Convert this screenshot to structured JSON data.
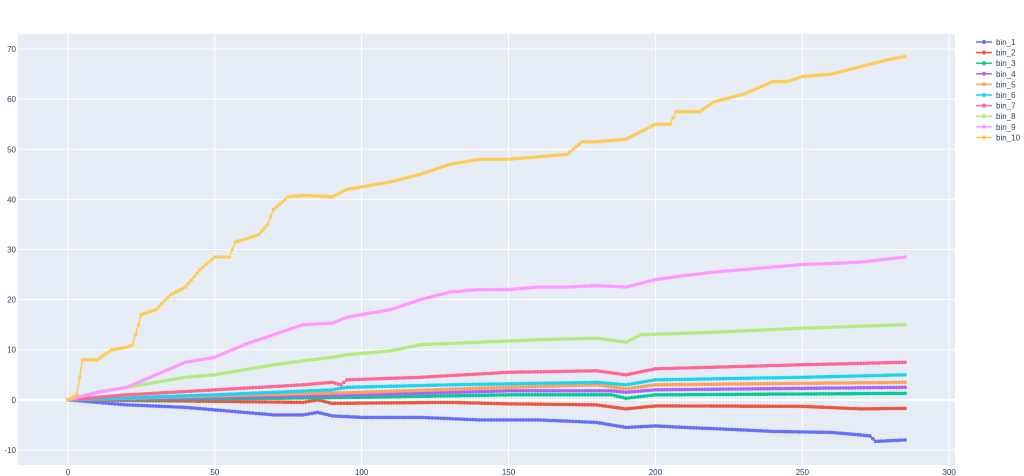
{
  "chart_data": {
    "type": "line",
    "title": "",
    "xlabel": "",
    "ylabel": "",
    "xlim": [
      -17,
      302
    ],
    "ylim": [
      -13,
      73
    ],
    "xticks": [
      0,
      50,
      100,
      150,
      200,
      250,
      300
    ],
    "yticks": [
      -10,
      0,
      10,
      20,
      30,
      40,
      50,
      60,
      70
    ],
    "grid": true,
    "legend_position": "right",
    "series": [
      {
        "name": "bin_1",
        "color": "#636efa",
        "points": [
          [
            0,
            0
          ],
          [
            20,
            -1
          ],
          [
            40,
            -1.5
          ],
          [
            50,
            -2
          ],
          [
            60,
            -2.5
          ],
          [
            70,
            -3
          ],
          [
            80,
            -3
          ],
          [
            85,
            -2.5
          ],
          [
            90,
            -3.2
          ],
          [
            100,
            -3.5
          ],
          [
            120,
            -3.5
          ],
          [
            140,
            -4
          ],
          [
            160,
            -4
          ],
          [
            180,
            -4.5
          ],
          [
            190,
            -5.5
          ],
          [
            200,
            -5.2
          ],
          [
            210,
            -5.5
          ],
          [
            230,
            -6
          ],
          [
            240,
            -6.3
          ],
          [
            260,
            -6.5
          ],
          [
            270,
            -7
          ],
          [
            273,
            -7.2
          ],
          [
            275,
            -8.3
          ],
          [
            285,
            -8
          ]
        ]
      },
      {
        "name": "bin_2",
        "color": "#EF553B",
        "points": [
          [
            0,
            0
          ],
          [
            50,
            -0.3
          ],
          [
            80,
            -0.5
          ],
          [
            85,
            0
          ],
          [
            90,
            -0.7
          ],
          [
            130,
            -0.5
          ],
          [
            150,
            -0.8
          ],
          [
            180,
            -1
          ],
          [
            190,
            -1.8
          ],
          [
            200,
            -1.2
          ],
          [
            250,
            -1.3
          ],
          [
            270,
            -1.8
          ],
          [
            285,
            -1.7
          ]
        ]
      },
      {
        "name": "bin_3",
        "color": "#00cc96",
        "points": [
          [
            0,
            0
          ],
          [
            50,
            0.2
          ],
          [
            100,
            0.5
          ],
          [
            150,
            1
          ],
          [
            185,
            1
          ],
          [
            190,
            0.3
          ],
          [
            200,
            1
          ],
          [
            285,
            1.3
          ]
        ]
      },
      {
        "name": "bin_4",
        "color": "#ab63fa",
        "points": [
          [
            0,
            0
          ],
          [
            50,
            0.5
          ],
          [
            100,
            1
          ],
          [
            150,
            1.8
          ],
          [
            185,
            1.8
          ],
          [
            190,
            1.5
          ],
          [
            200,
            2
          ],
          [
            285,
            2.5
          ]
        ]
      },
      {
        "name": "bin_5",
        "color": "#FFA15A",
        "points": [
          [
            0,
            0
          ],
          [
            50,
            0.8
          ],
          [
            100,
            1.5
          ],
          [
            150,
            2.5
          ],
          [
            180,
            3
          ],
          [
            190,
            2.2
          ],
          [
            200,
            3
          ],
          [
            285,
            3.5
          ]
        ]
      },
      {
        "name": "bin_6",
        "color": "#19d3f3",
        "points": [
          [
            0,
            0
          ],
          [
            50,
            1
          ],
          [
            90,
            2
          ],
          [
            95,
            2.5
          ],
          [
            130,
            3
          ],
          [
            180,
            3.5
          ],
          [
            190,
            3
          ],
          [
            200,
            4
          ],
          [
            250,
            4.5
          ],
          [
            285,
            5
          ]
        ]
      },
      {
        "name": "bin_7",
        "color": "#FF6692",
        "points": [
          [
            0,
            0
          ],
          [
            20,
            1
          ],
          [
            50,
            2
          ],
          [
            80,
            3
          ],
          [
            90,
            3.5
          ],
          [
            93,
            3
          ],
          [
            95,
            4
          ],
          [
            120,
            4.5
          ],
          [
            150,
            5.5
          ],
          [
            180,
            5.8
          ],
          [
            190,
            5
          ],
          [
            200,
            6.2
          ],
          [
            250,
            7
          ],
          [
            285,
            7.5
          ]
        ]
      },
      {
        "name": "bin_8",
        "color": "#B6E880",
        "points": [
          [
            0,
            0
          ],
          [
            10,
            1.5
          ],
          [
            20,
            2.5
          ],
          [
            30,
            3.5
          ],
          [
            40,
            4.5
          ],
          [
            50,
            5
          ],
          [
            60,
            6
          ],
          [
            70,
            7
          ],
          [
            80,
            7.8
          ],
          [
            90,
            8.5
          ],
          [
            95,
            9
          ],
          [
            110,
            9.8
          ],
          [
            120,
            11
          ],
          [
            140,
            11.5
          ],
          [
            160,
            12
          ],
          [
            180,
            12.3
          ],
          [
            190,
            11.5
          ],
          [
            195,
            13
          ],
          [
            220,
            13.5
          ],
          [
            250,
            14.3
          ],
          [
            285,
            15
          ]
        ]
      },
      {
        "name": "bin_9",
        "color": "#FF97FF",
        "points": [
          [
            0,
            0
          ],
          [
            10,
            1.5
          ],
          [
            20,
            2.5
          ],
          [
            30,
            5
          ],
          [
            40,
            7.5
          ],
          [
            50,
            8.5
          ],
          [
            60,
            11
          ],
          [
            70,
            13
          ],
          [
            80,
            15
          ],
          [
            90,
            15.3
          ],
          [
            95,
            16.5
          ],
          [
            100,
            17
          ],
          [
            110,
            18
          ],
          [
            120,
            20
          ],
          [
            130,
            21.5
          ],
          [
            140,
            22
          ],
          [
            150,
            22
          ],
          [
            160,
            22.5
          ],
          [
            170,
            22.5
          ],
          [
            180,
            22.8
          ],
          [
            190,
            22.5
          ],
          [
            200,
            24
          ],
          [
            210,
            24.8
          ],
          [
            220,
            25.5
          ],
          [
            230,
            26
          ],
          [
            240,
            26.5
          ],
          [
            250,
            27
          ],
          [
            260,
            27.2
          ],
          [
            270,
            27.5
          ],
          [
            285,
            28.5
          ]
        ]
      },
      {
        "name": "bin_10",
        "color": "#FECB52",
        "points": [
          [
            0,
            0
          ],
          [
            3,
            1
          ],
          [
            5,
            8
          ],
          [
            10,
            8
          ],
          [
            15,
            10
          ],
          [
            20,
            10.5
          ],
          [
            22,
            11
          ],
          [
            25,
            17
          ],
          [
            30,
            18
          ],
          [
            35,
            21
          ],
          [
            40,
            22.5
          ],
          [
            45,
            26
          ],
          [
            50,
            28.5
          ],
          [
            55,
            28.5
          ],
          [
            57,
            31.5
          ],
          [
            60,
            32
          ],
          [
            65,
            33
          ],
          [
            68,
            35
          ],
          [
            70,
            38
          ],
          [
            75,
            40.5
          ],
          [
            80,
            40.8
          ],
          [
            90,
            40.5
          ],
          [
            95,
            42
          ],
          [
            100,
            42.5
          ],
          [
            110,
            43.5
          ],
          [
            120,
            45
          ],
          [
            130,
            47
          ],
          [
            140,
            48
          ],
          [
            150,
            48
          ],
          [
            160,
            48.5
          ],
          [
            170,
            49
          ],
          [
            175,
            51.5
          ],
          [
            180,
            51.5
          ],
          [
            190,
            52
          ],
          [
            200,
            55
          ],
          [
            205,
            55
          ],
          [
            207,
            57.5
          ],
          [
            215,
            57.5
          ],
          [
            220,
            59.5
          ],
          [
            230,
            61
          ],
          [
            240,
            63.5
          ],
          [
            245,
            63.5
          ],
          [
            250,
            64.5
          ],
          [
            260,
            65
          ],
          [
            270,
            66.5
          ],
          [
            280,
            68
          ],
          [
            285,
            68.5
          ]
        ]
      }
    ]
  }
}
